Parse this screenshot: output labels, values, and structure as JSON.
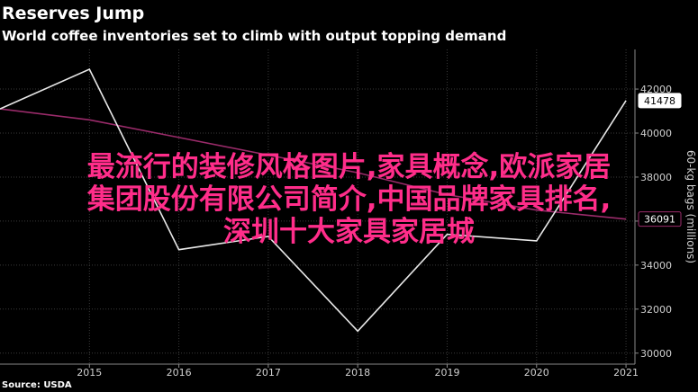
{
  "header": {
    "title": "Reserves Jump",
    "subtitle": "World coffee inventories set to climb with output topping demand",
    "source": "Source: USDA"
  },
  "overlay": {
    "lines": [
      "最流行的装修风格图片,家具概念,欧派家居",
      "集团股份有限公司简介,中国品牌家具排名,",
      "深圳十大家具家居城"
    ]
  },
  "colors": {
    "background": "#000000",
    "series_white": "#e8e8e8",
    "series_pink": "#9a2b6a",
    "overlay_text": "#ff2d8a"
  },
  "chart_data": {
    "type": "line",
    "x": [
      2014,
      2015,
      2016,
      2017,
      2018,
      2019,
      2020,
      2021
    ],
    "xlim": [
      2014,
      2021.1
    ],
    "x_ticks": [
      "2015",
      "2016",
      "2017",
      "2018",
      "2019",
      "2020",
      "2021"
    ],
    "ylabel": "60-kg bags (millions)",
    "ylim": [
      29500,
      43800
    ],
    "y_ticks": [
      "42000",
      "40000",
      "38000",
      "36000",
      "34000",
      "32000",
      "30000"
    ],
    "grid": true,
    "series": [
      {
        "color": "#e8e8e8",
        "values": [
          41100,
          42900,
          34700,
          35300,
          31000,
          35400,
          35100,
          41478
        ],
        "end_label": "41478"
      },
      {
        "color": "#9a2b6a",
        "values": [
          41100,
          40600,
          39800,
          39000,
          38200,
          37200,
          36500,
          36091
        ],
        "end_label": "36091"
      }
    ]
  }
}
